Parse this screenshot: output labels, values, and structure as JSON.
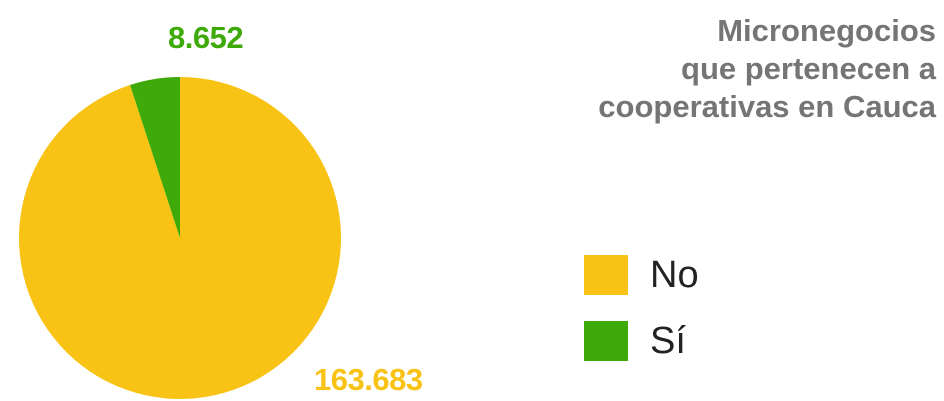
{
  "chart_data": {
    "type": "pie",
    "title": "Micronegocios\nque pertenecen a\ncooperativas en Cauca",
    "slices": [
      {
        "label": "No",
        "value": 163683,
        "value_label": "163.683",
        "color": "#F8C314"
      },
      {
        "label": "Sí",
        "value": 8652,
        "value_label": "8.652",
        "color": "#3DAA0A"
      }
    ],
    "legend_position": "right"
  }
}
